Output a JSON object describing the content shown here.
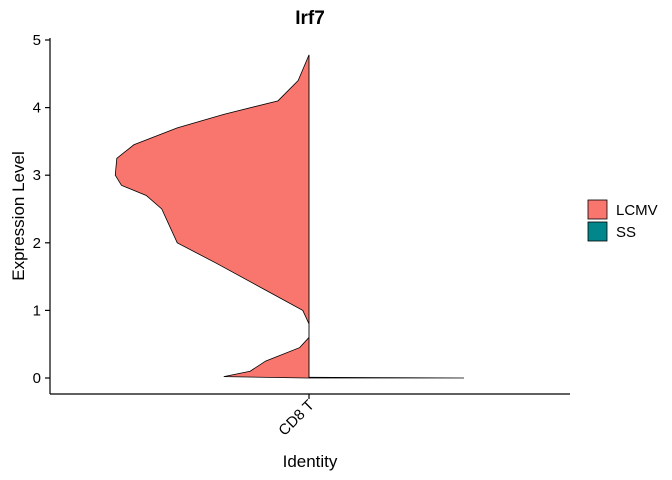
{
  "chart_data": {
    "type": "violin",
    "title": "Irf7",
    "xlabel": "Identity",
    "ylabel": "Expression Level",
    "categories": [
      "CD8 T"
    ],
    "ylim": [
      -0.25,
      5
    ],
    "yticks": [
      0,
      1,
      2,
      3,
      4,
      5
    ],
    "legend_position": "right",
    "grid": false,
    "series": [
      {
        "name": "LCMV",
        "color": "#F8766D",
        "side": "left",
        "max_value": 4.78,
        "density_profile": [
          {
            "y": 0.0,
            "w": 0.02
          },
          {
            "y": 0.02,
            "w": 0.55
          },
          {
            "y": 0.1,
            "w": 0.38
          },
          {
            "y": 0.25,
            "w": 0.28
          },
          {
            "y": 0.45,
            "w": 0.06
          },
          {
            "y": 0.6,
            "w": 0.0
          },
          {
            "y": 0.8,
            "w": 0.0
          },
          {
            "y": 1.0,
            "w": 0.04
          },
          {
            "y": 1.3,
            "w": 0.28
          },
          {
            "y": 1.7,
            "w": 0.6
          },
          {
            "y": 2.0,
            "w": 0.85
          },
          {
            "y": 2.2,
            "w": 0.89
          },
          {
            "y": 2.5,
            "w": 0.95
          },
          {
            "y": 2.7,
            "w": 1.05
          },
          {
            "y": 2.85,
            "w": 1.21
          },
          {
            "y": 3.0,
            "w": 1.25
          },
          {
            "y": 3.25,
            "w": 1.24
          },
          {
            "y": 3.45,
            "w": 1.13
          },
          {
            "y": 3.7,
            "w": 0.85
          },
          {
            "y": 3.9,
            "w": 0.55
          },
          {
            "y": 4.1,
            "w": 0.2
          },
          {
            "y": 4.4,
            "w": 0.07
          },
          {
            "y": 4.78,
            "w": 0.0
          }
        ]
      },
      {
        "name": "SS",
        "color": "#00868B",
        "side": "right",
        "max_value": 0.01,
        "density_profile": [
          {
            "y": 0.0,
            "w": 1.0
          },
          {
            "y": 0.005,
            "w": 0.5
          },
          {
            "y": 0.01,
            "w": 0.0
          }
        ]
      }
    ]
  }
}
